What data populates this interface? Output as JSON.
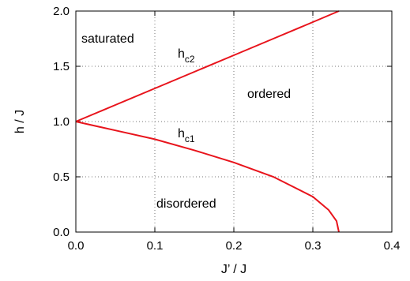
{
  "chart_data": {
    "type": "line",
    "title": "",
    "xlabel": "J’ / J",
    "ylabel": "h / J",
    "xlim": [
      0.0,
      0.4
    ],
    "ylim": [
      0.0,
      2.0
    ],
    "xticks": [
      0.0,
      0.1,
      0.2,
      0.3,
      0.4
    ],
    "yticks": [
      0.0,
      0.5,
      1.0,
      1.5,
      2.0
    ],
    "xtick_labels": [
      "0.0",
      "0.1",
      "0.2",
      "0.3",
      "0.4"
    ],
    "ytick_labels": [
      "0.0",
      "0.5",
      "1.0",
      "1.5",
      "2.0"
    ],
    "grid": true,
    "line_color": "#e8141c",
    "series": [
      {
        "x": [
          0.0,
          0.05,
          0.1,
          0.15,
          0.2,
          0.25,
          0.3,
          0.333
        ],
        "y": [
          1.0,
          1.15,
          1.3,
          1.45,
          1.6,
          1.75,
          1.9,
          2.0
        ]
      },
      {
        "x": [
          0.0,
          0.05,
          0.1,
          0.15,
          0.2,
          0.25,
          0.3,
          0.32,
          0.33,
          0.333
        ],
        "y": [
          1.0,
          0.92,
          0.84,
          0.74,
          0.63,
          0.5,
          0.32,
          0.2,
          0.1,
          0.0
        ]
      }
    ],
    "annotations": {
      "saturated": "saturated",
      "ordered": "ordered",
      "disordered": "disordered",
      "hc2_base": "h",
      "hc2_sub": "c2",
      "hc1_base": "h",
      "hc1_sub": "c1"
    }
  }
}
